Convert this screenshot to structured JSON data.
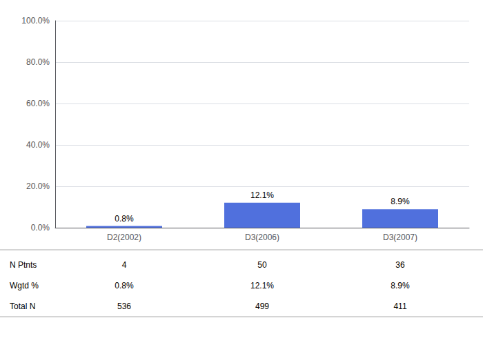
{
  "chart_data": {
    "type": "bar",
    "categories": [
      "D2(2002)",
      "D3(2006)",
      "D3(2007)"
    ],
    "values": [
      0.8,
      12.1,
      8.9
    ],
    "value_labels": [
      "0.8%",
      "12.1%",
      "8.9%"
    ],
    "data_labels": true,
    "ylim": [
      0,
      100
    ],
    "yticks": [
      {
        "value": 0,
        "label": "0.0%"
      },
      {
        "value": 20,
        "label": "20.0%"
      },
      {
        "value": 40,
        "label": "40.0%"
      },
      {
        "value": 60,
        "label": "60.0%"
      },
      {
        "value": 80,
        "label": "80.0%"
      },
      {
        "value": 100,
        "label": "100.0%"
      }
    ],
    "grid": true,
    "table": {
      "rows": [
        "N Ptnts",
        "Wgtd %",
        "Total N"
      ],
      "cells": [
        [
          "4",
          "50",
          "36"
        ],
        [
          "0.8%",
          "12.1%",
          "8.9%"
        ],
        [
          "536",
          "499",
          "411"
        ]
      ]
    }
  }
}
